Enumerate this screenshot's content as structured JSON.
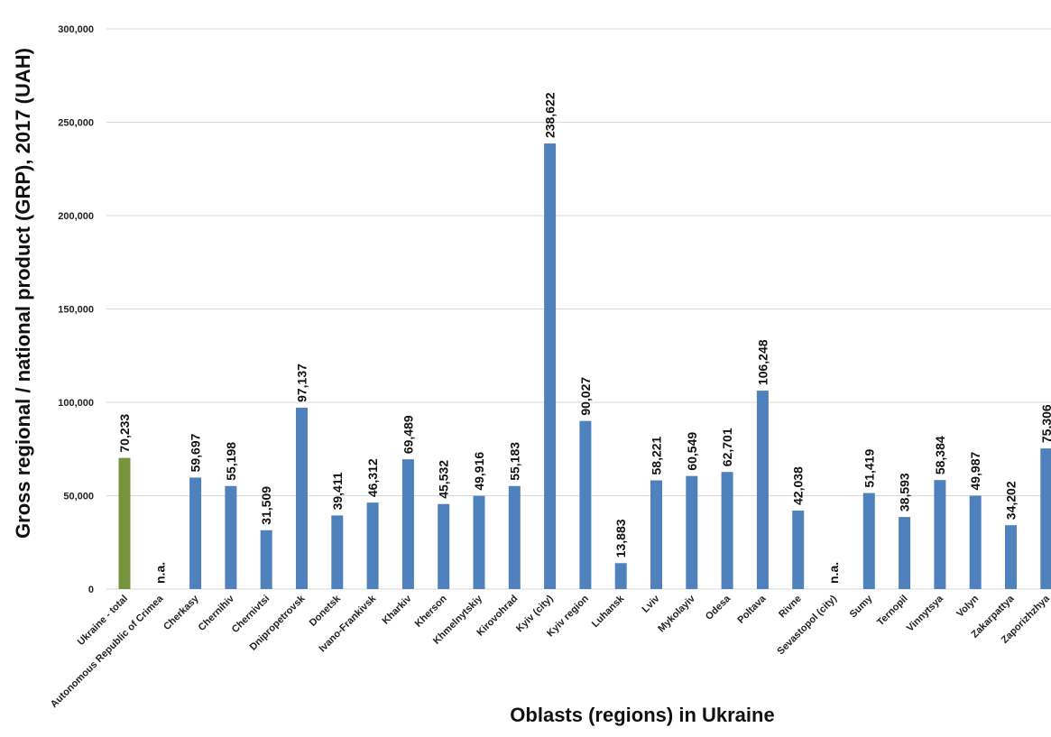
{
  "chart_data": {
    "type": "bar",
    "xlabel": "Oblasts (regions) in Ukraine",
    "ylabel": "Gross regional / national product (GRP), 2017 (UAH)",
    "ylim": [
      0,
      300000
    ],
    "yticks": [
      "0",
      "50,000",
      "100,000",
      "150,000",
      "200,000",
      "250,000",
      "300,000"
    ],
    "ytick_values": [
      0,
      50000,
      100000,
      150000,
      200000,
      250000,
      300000
    ],
    "grid": true,
    "highlight_color": "#77933c",
    "bar_color": "#4f81bd",
    "categories": [
      "Ukraine - total",
      "Autonomous Republic of Crimea",
      "Cherkasy",
      "Chernihiv",
      "Chernivtsi",
      "Dnipropetrovsk",
      "Donetsk",
      "Ivano-Frankivsk",
      "Kharkiv",
      "Kherson",
      "Khmelnytskiy",
      "Kirovohrad",
      "Kyiv (city)",
      "Kyiv region",
      "Luhansk",
      "Lviv",
      "Mykolayiv",
      "Odesa",
      "Poltava",
      "Rivne",
      "Sevastopol (city)",
      "Sumy",
      "Ternopil",
      "Vinnytsya",
      "Volyn",
      "Zakarpattya",
      "Zaporizhzhya"
    ],
    "values": [
      70233,
      null,
      59697,
      55198,
      31509,
      97137,
      39411,
      46312,
      69489,
      45532,
      49916,
      55183,
      238622,
      90027,
      13883,
      58221,
      60549,
      62701,
      106248,
      42038,
      null,
      51419,
      38593,
      58384,
      49987,
      34202,
      75306
    ],
    "labels": [
      "70,233",
      "n.a.",
      "59,697",
      "55,198",
      "31,509",
      "97,137",
      "39,411",
      "46,312",
      "69,489",
      "45,532",
      "49,916",
      "55,183",
      "238,622",
      "90,027",
      "13,883",
      "58,221",
      "60,549",
      "62,701",
      "106,248",
      "42,038",
      "n.a.",
      "51,419",
      "38,593",
      "58,384",
      "49,987",
      "34,202",
      "75,306"
    ]
  }
}
